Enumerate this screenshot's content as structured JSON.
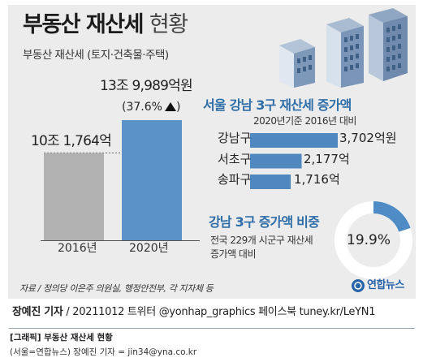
{
  "title_bold": "부동산 재산세",
  "title_light": "현황",
  "subtitle": "부동산 재산세 (토지·건축물·주택)",
  "chart_data": [
    {
      "type": "bar",
      "categories": [
        "2016년",
        "2020년"
      ],
      "values": [
        101764,
        139989
      ],
      "value_labels": [
        "10조 1,764억",
        "13조 9,989억원"
      ],
      "increase_label": "(37.6%",
      "ylim": [
        0,
        140000
      ],
      "colors": [
        "#b2b2b2",
        "#5b93c8"
      ]
    },
    {
      "type": "bar",
      "title": "서울 강남 3구 재산세 증가액",
      "subtitle": "2020년기준 2016년 대비",
      "categories": [
        "강남구",
        "서초구",
        "송파구"
      ],
      "values": [
        3702,
        2177,
        1716
      ],
      "value_labels": [
        "3,702억원",
        "2,177억",
        "1,716억"
      ],
      "orientation": "horizontal",
      "color": "#4e88bf"
    },
    {
      "type": "pie",
      "title": "강남 3구 증가액 비중",
      "description": [
        "전국 229개 시군구 재산세",
        "증가액 대비"
      ],
      "value": 19.9,
      "value_label": "19.9%",
      "colors": [
        "#4f8bc4",
        "#ffffff"
      ]
    }
  ],
  "source": "자료 / 정의당 이은주 의원실, 행정안전부, 각 지자체 등",
  "logo_text": "연합뉴스",
  "credit_name": "장예진 기자",
  "credit_rest": " / 20211012 트위터 @yonhap_graphics  페이스북 tuney.kr/LeYN1",
  "caption_title": "[그래픽] 부동산 재산세 현황",
  "caption_credit": "(서울=연합뉴스) 장예진 기자 = jin34@yna.co.kr",
  "colors": {
    "panel": "#ececec",
    "blue": "#4e88bf",
    "gray": "#b2b2b2",
    "title_blue": "#2f6ea8"
  }
}
